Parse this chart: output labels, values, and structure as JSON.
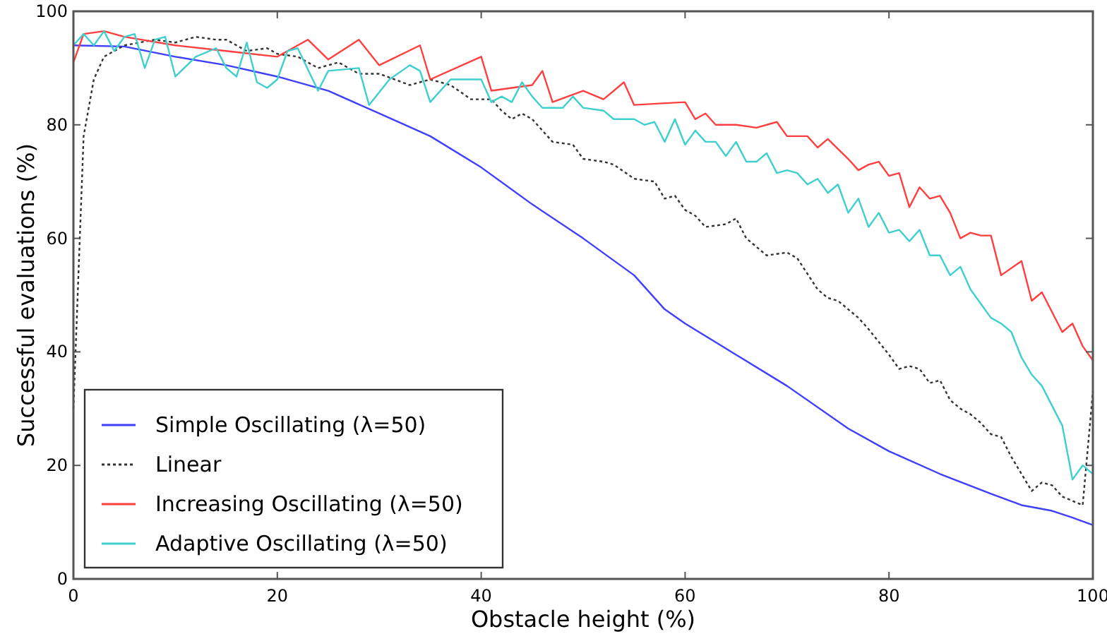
{
  "chart_data": {
    "type": "line",
    "xlabel": "Obstacle height (%)",
    "ylabel": "Successful evaluations (%)",
    "xlim": [
      0,
      100
    ],
    "ylim": [
      0,
      100
    ],
    "xticks": [
      0,
      20,
      40,
      60,
      80,
      100
    ],
    "yticks": [
      0,
      20,
      40,
      60,
      80,
      100
    ],
    "grid": false,
    "legend": "bottom left",
    "marker": "none",
    "series": [
      {
        "name": "Simple Oscillating (λ=50)",
        "color": "#3f3fff",
        "line_style": "solid",
        "x": [
          0,
          5,
          10,
          15,
          20,
          25,
          30,
          35,
          40,
          45,
          50,
          55,
          58,
          60,
          65,
          70,
          76,
          80,
          85,
          90,
          93,
          96,
          98,
          100
        ],
        "values": [
          94,
          93.8,
          92,
          90.5,
          88.5,
          86,
          82,
          78,
          72.5,
          66,
          60,
          53.5,
          47.5,
          45,
          39.5,
          34,
          26.5,
          22.5,
          18.5,
          15,
          13,
          12,
          10.8,
          9.5
        ]
      },
      {
        "name": "Linear",
        "color": "#333333",
        "line_style": "dotted",
        "x": [
          0,
          1,
          2,
          3,
          5,
          8,
          10,
          12,
          14,
          15,
          17,
          19,
          20,
          22,
          24,
          26,
          28,
          30,
          33,
          35,
          37,
          39,
          41,
          42,
          43,
          44,
          45,
          47,
          49,
          50,
          52,
          53,
          55,
          57,
          58,
          59,
          60,
          61,
          62,
          64,
          65,
          66,
          67,
          68,
          70,
          71,
          73,
          74,
          75,
          77,
          78,
          80,
          81,
          82,
          83,
          84,
          85,
          86,
          87,
          88,
          89,
          90,
          91,
          92,
          93,
          94,
          95,
          96,
          97,
          99,
          100
        ],
        "values": [
          30,
          78,
          88,
          92,
          94,
          95,
          94.5,
          95.5,
          95,
          95,
          93,
          93.5,
          92.5,
          92,
          90,
          91,
          89,
          89,
          87,
          88,
          87,
          84.5,
          84.5,
          82.5,
          81,
          82,
          81,
          77,
          76.5,
          74,
          73.5,
          73,
          70.5,
          70,
          67,
          67.5,
          65,
          64,
          62,
          62.5,
          63.5,
          60,
          58.5,
          57,
          57.5,
          56.5,
          51,
          49.5,
          49,
          46,
          44,
          39.5,
          37,
          37.5,
          37,
          34.5,
          35,
          31.5,
          30,
          29,
          27.5,
          25.5,
          25,
          21.5,
          18.5,
          15.5,
          17,
          16.5,
          14.5,
          13,
          33
        ]
      },
      {
        "name": "Increasing Oscillating (λ=50)",
        "color": "#ff3f3f",
        "line_style": "solid",
        "x": [
          0,
          1,
          3,
          5,
          10,
          15,
          20,
          23,
          25,
          28,
          30,
          34,
          35,
          40,
          41,
          45,
          46,
          47,
          50,
          52,
          54,
          55,
          60,
          61,
          62,
          63,
          65,
          67,
          69,
          70,
          72,
          73,
          74,
          76,
          77,
          78,
          79,
          80,
          81,
          82,
          83,
          84,
          85,
          86,
          87,
          88,
          89,
          90,
          91,
          93,
          94,
          95,
          97,
          98,
          99,
          100
        ],
        "values": [
          91,
          96,
          96.5,
          95.5,
          94,
          93,
          92,
          95,
          91.5,
          95,
          90.5,
          94,
          88,
          92,
          86,
          87,
          89.5,
          84,
          86,
          84.5,
          87.5,
          83.5,
          84,
          81,
          82,
          80,
          80,
          79.5,
          80.5,
          78,
          78,
          76,
          77.5,
          74,
          72,
          73,
          73.5,
          71,
          71.5,
          65.5,
          69,
          67,
          67.5,
          64.5,
          60,
          61,
          60.5,
          60.5,
          53.5,
          56,
          49,
          50.5,
          43.5,
          45,
          41,
          38.5
        ]
      },
      {
        "name": "Adaptive Oscillating (λ=50)",
        "color": "#3fcfcf",
        "line_style": "solid",
        "x": [
          0,
          1,
          2,
          3,
          4,
          5,
          6,
          7,
          8,
          9,
          10,
          12,
          14,
          15,
          16,
          17,
          18,
          19,
          20,
          21,
          22,
          24,
          25,
          28,
          29,
          31,
          33,
          34,
          35,
          37,
          40,
          41,
          42,
          43,
          44,
          45,
          46,
          48,
          49,
          50,
          52,
          53,
          55,
          56,
          57,
          58,
          59,
          60,
          61,
          62,
          63,
          64,
          65,
          66,
          67,
          68,
          69,
          70,
          71,
          72,
          73,
          74,
          75,
          76,
          77,
          78,
          79,
          80,
          81,
          82,
          83,
          84,
          85,
          86,
          87,
          88,
          90,
          91,
          92,
          93,
          94,
          95,
          97,
          98,
          99,
          100
        ],
        "values": [
          94,
          96,
          94,
          96.5,
          93,
          95.5,
          96,
          90,
          95,
          95.5,
          88.5,
          92,
          93.5,
          90,
          88.5,
          94.5,
          87.5,
          86.5,
          88,
          93,
          93.5,
          86,
          89.5,
          90,
          83.5,
          88,
          90.5,
          89.5,
          84,
          88,
          88,
          84,
          85,
          84,
          87.5,
          85,
          83,
          83,
          85,
          83,
          82.5,
          81,
          81,
          80,
          80.5,
          77,
          81,
          76.5,
          79,
          77,
          77,
          74.5,
          77,
          73.5,
          73.5,
          75,
          71.5,
          72,
          71.5,
          69.5,
          70.5,
          68,
          69.5,
          64.5,
          67,
          62,
          64.5,
          61,
          61.5,
          59.5,
          61.5,
          57,
          57,
          53.5,
          55,
          51,
          46,
          45,
          43.5,
          39,
          36,
          34,
          27,
          17.5,
          20,
          18.5
        ]
      }
    ]
  }
}
